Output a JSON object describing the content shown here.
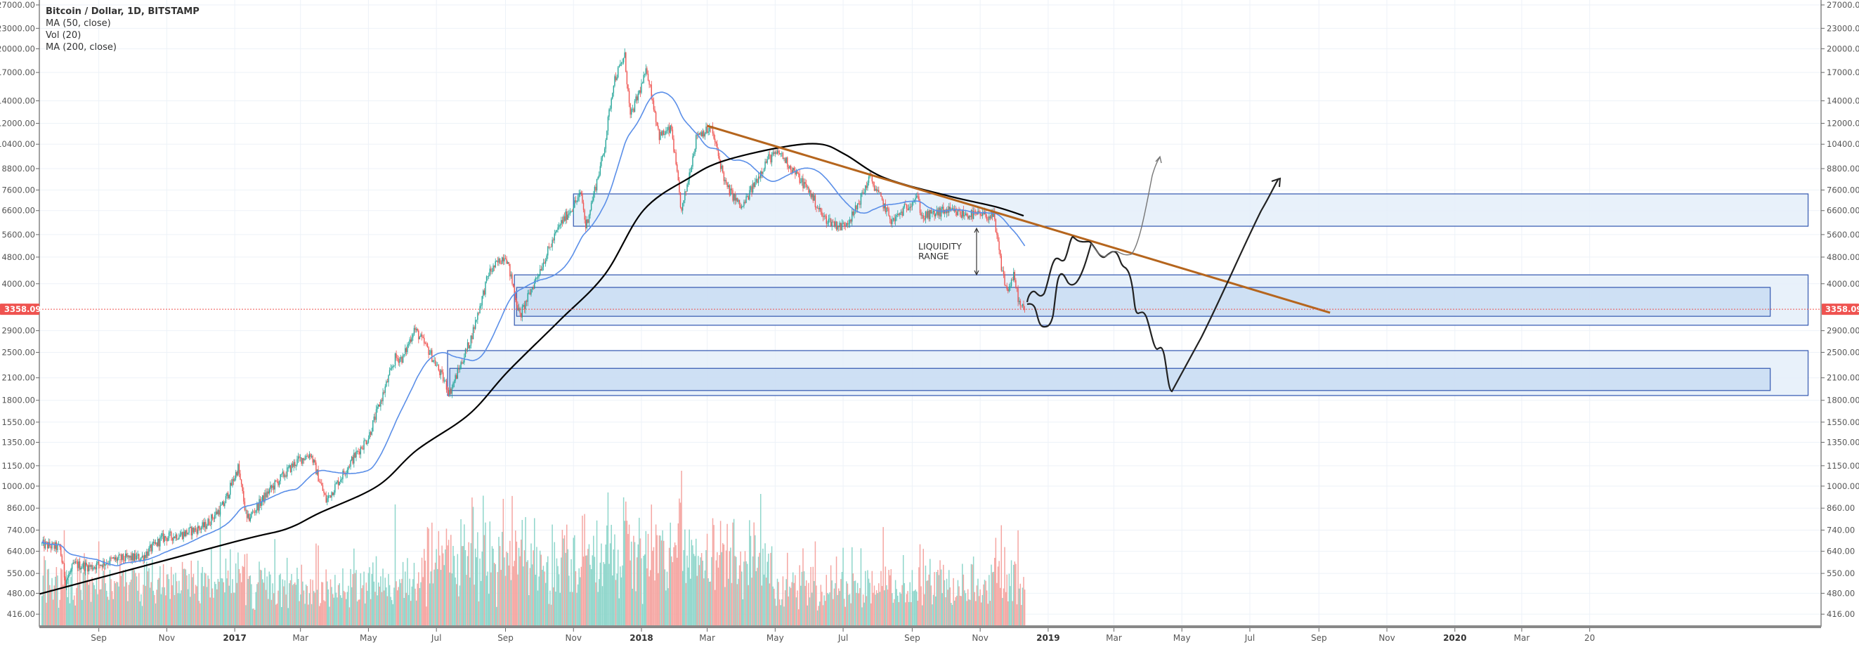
{
  "legend": {
    "title": "Bitcoin / Dollar, 1D, BITSTAMP",
    "indicators": [
      "MA (50, close)",
      "Vol (20)",
      "MA (200, close)"
    ]
  },
  "colors": {
    "up_candle": "#26a69a",
    "down_candle": "#ef5350",
    "up_volume": "#8fd6cb",
    "down_volume": "#f5a6a2",
    "ma50": "#5b8fe8",
    "ma200": "#000000",
    "trendline": "#b5651d",
    "zone_border": "#3f62b5",
    "zone_fill_outer": "#e4eef9",
    "zone_fill_inner": "#c6daf1",
    "last_price": "#ef5350",
    "grid": "#edf2f8"
  },
  "chart_data": {
    "type": "candlestick",
    "title": "Bitcoin / Dollar, 1D, BITSTAMP",
    "y_scale": "log",
    "ylim": [
      416,
      27000
    ],
    "xlim": [
      "2016-07-10",
      "2020-11-20"
    ],
    "grid": true,
    "y_ticks": [
      "27000.00",
      "23000.00",
      "20000.00",
      "17000.00",
      "14000.00",
      "12000.00",
      "10400.00",
      "8800.00",
      "7600.00",
      "6600.00",
      "5600.00",
      "4800.00",
      "4000.00",
      "2900.00",
      "2500.00",
      "2100.00",
      "1800.00",
      "1550.00",
      "1350.00",
      "1150.00",
      "1000.00",
      "860.00",
      "740.00",
      "640.00",
      "550.00",
      "480.00",
      "416.00"
    ],
    "x_ticks": [
      {
        "label": "Sep",
        "date": "2016-09-01"
      },
      {
        "label": "Nov",
        "date": "2016-11-01"
      },
      {
        "label": "2017",
        "date": "2017-01-01",
        "year": true
      },
      {
        "label": "Mar",
        "date": "2017-03-01"
      },
      {
        "label": "May",
        "date": "2017-05-01"
      },
      {
        "label": "Jul",
        "date": "2017-07-01"
      },
      {
        "label": "Sep",
        "date": "2017-09-01"
      },
      {
        "label": "Nov",
        "date": "2017-11-01"
      },
      {
        "label": "2018",
        "date": "2018-01-01",
        "year": true
      },
      {
        "label": "Mar",
        "date": "2018-03-01"
      },
      {
        "label": "May",
        "date": "2018-05-01"
      },
      {
        "label": "Jul",
        "date": "2018-07-01"
      },
      {
        "label": "Sep",
        "date": "2018-09-01"
      },
      {
        "label": "Nov",
        "date": "2018-11-01"
      },
      {
        "label": "2019",
        "date": "2019-01-01",
        "year": true
      },
      {
        "label": "Mar",
        "date": "2019-03-01"
      },
      {
        "label": "May",
        "date": "2019-05-01"
      },
      {
        "label": "Jul",
        "date": "2019-07-01"
      },
      {
        "label": "Sep",
        "date": "2019-09-01"
      },
      {
        "label": "Nov",
        "date": "2019-11-01"
      },
      {
        "label": "2020",
        "date": "2020-01-01",
        "year": true
      },
      {
        "label": "Mar",
        "date": "2020-03-01"
      },
      {
        "label": "20",
        "date": "2020-05-01"
      }
    ],
    "last_price": "3358.09",
    "price_path": [
      [
        "2016-07-12",
        670
      ],
      [
        "2016-07-28",
        655
      ],
      [
        "2016-08-02",
        520
      ],
      [
        "2016-08-10",
        585
      ],
      [
        "2016-08-25",
        575
      ],
      [
        "2016-09-15",
        605
      ],
      [
        "2016-10-10",
        615
      ],
      [
        "2016-10-28",
        700
      ],
      [
        "2016-11-15",
        720
      ],
      [
        "2016-12-05",
        760
      ],
      [
        "2016-12-22",
        880
      ],
      [
        "2017-01-04",
        1135
      ],
      [
        "2017-01-12",
        790
      ],
      [
        "2017-02-01",
        970
      ],
      [
        "2017-02-25",
        1180
      ],
      [
        "2017-03-10",
        1250
      ],
      [
        "2017-03-24",
        905
      ],
      [
        "2017-04-15",
        1180
      ],
      [
        "2017-05-01",
        1400
      ],
      [
        "2017-05-25",
        2400
      ],
      [
        "2017-06-01",
        2400
      ],
      [
        "2017-06-11",
        2944
      ],
      [
        "2017-06-25",
        2500
      ],
      [
        "2017-07-13",
        1900
      ],
      [
        "2017-08-01",
        2750
      ],
      [
        "2017-08-17",
        4300
      ],
      [
        "2017-09-01",
        4900
      ],
      [
        "2017-09-14",
        3200
      ],
      [
        "2017-10-01",
        4350
      ],
      [
        "2017-10-20",
        6000
      ],
      [
        "2017-11-08",
        7400
      ],
      [
        "2017-11-12",
        5900
      ],
      [
        "2017-11-28",
        9800
      ],
      [
        "2017-12-07",
        16000
      ],
      [
        "2017-12-17",
        19000
      ],
      [
        "2017-12-22",
        12500
      ],
      [
        "2018-01-06",
        17300
      ],
      [
        "2018-01-17",
        11000
      ],
      [
        "2018-01-28",
        11500
      ],
      [
        "2018-02-06",
        6500
      ],
      [
        "2018-02-20",
        11200
      ],
      [
        "2018-03-05",
        11500
      ],
      [
        "2018-03-18",
        7800
      ],
      [
        "2018-04-01",
        6700
      ],
      [
        "2018-04-24",
        9400
      ],
      [
        "2018-05-05",
        9800
      ],
      [
        "2018-06-01",
        7500
      ],
      [
        "2018-06-13",
        6300
      ],
      [
        "2018-06-29",
        5900
      ],
      [
        "2018-07-10",
        6400
      ],
      [
        "2018-07-25",
        8300
      ],
      [
        "2018-08-14",
        6100
      ],
      [
        "2018-09-05",
        7300
      ],
      [
        "2018-09-10",
        6300
      ],
      [
        "2018-10-01",
        6600
      ],
      [
        "2018-10-15",
        6450
      ],
      [
        "2018-11-13",
        6350
      ],
      [
        "2018-11-20",
        4500
      ],
      [
        "2018-11-25",
        3800
      ],
      [
        "2018-12-01",
        4200
      ],
      [
        "2018-12-07",
        3400
      ],
      [
        "2018-12-11",
        3358.09
      ]
    ],
    "ma200_path": [
      [
        "2016-07-10",
        478
      ],
      [
        "2017-01-01",
        683
      ],
      [
        "2017-02-16",
        745
      ],
      [
        "2017-03-18",
        832
      ],
      [
        "2017-05-09",
        1000
      ],
      [
        "2017-06-13",
        1277
      ],
      [
        "2017-07-30",
        1632
      ],
      [
        "2017-09-03",
        2190
      ],
      [
        "2017-10-19",
        3097
      ],
      [
        "2017-11-29",
        4256
      ],
      [
        "2018-01-03",
        6626
      ],
      [
        "2018-02-13",
        8262
      ],
      [
        "2018-03-14",
        9233
      ],
      [
        "2018-05-05",
        10164
      ],
      [
        "2018-06-10",
        10410
      ],
      [
        "2018-07-03",
        9688
      ],
      [
        "2018-08-07",
        8262
      ],
      [
        "2018-10-04",
        7290
      ],
      [
        "2018-11-14",
        6786
      ],
      [
        "2018-12-10",
        6373
      ]
    ],
    "ma50_period": 50,
    "zones": [
      {
        "from": "2017-11-01",
        "to": "2020-11-13",
        "low": 5930,
        "high": 7400,
        "style": "outer"
      },
      {
        "from": "2017-09-09",
        "to": "2020-11-13",
        "low": 3010,
        "high": 4250,
        "style": "outer"
      },
      {
        "from": "2017-09-11",
        "to": "2020-10-10",
        "low": 3200,
        "high": 3900,
        "style": "inner"
      },
      {
        "from": "2017-07-11",
        "to": "2020-11-13",
        "low": 1860,
        "high": 2530,
        "style": "outer"
      },
      {
        "from": "2017-07-13",
        "to": "2020-10-10",
        "low": 1925,
        "high": 2240,
        "style": "inner"
      }
    ],
    "trendline": {
      "from": [
        "2018-03-01",
        11800
      ],
      "to": [
        "2019-09-11",
        3279
      ]
    },
    "annotations": [
      {
        "text_lines": [
          "LIQUIDITY",
          "RANGE"
        ]
      }
    ]
  }
}
